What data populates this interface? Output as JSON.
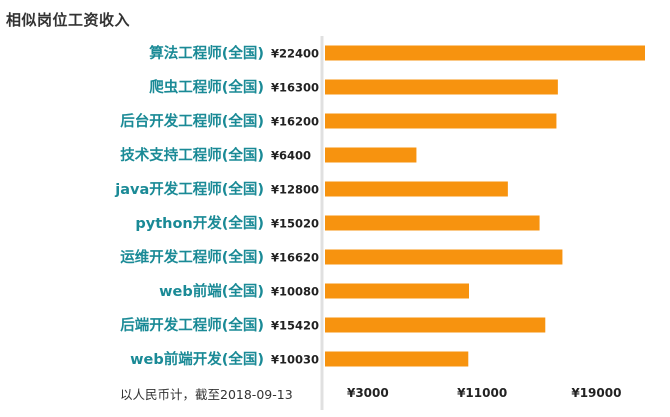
{
  "title": "相似岗位工资收入",
  "note": "以人民币计，截至2018-09-13",
  "colors": {
    "bar": "#f7930f",
    "category_label": "#1a8a96",
    "axis_line": "#e0e0e0"
  },
  "chart_data": {
    "type": "bar",
    "orientation": "horizontal",
    "categories": [
      "算法工程师(全国)",
      "爬虫工程师(全国)",
      "后台开发工程师(全国)",
      "技术支持工程师(全国)",
      "java开发工程师(全国)",
      "python开发(全国)",
      "运维开发工程师(全国)",
      "web前端(全国)",
      "后端开发工程师(全国)",
      "web前端开发(全国)"
    ],
    "values": [
      22400,
      16300,
      16200,
      6400,
      12800,
      15020,
      16620,
      10080,
      15420,
      10030
    ],
    "value_labels": [
      "¥22400",
      "¥16300",
      "¥16200",
      "¥6400",
      "¥12800",
      "¥15020",
      "¥16620",
      "¥10080",
      "¥15420",
      "¥10030"
    ],
    "x_ticks": [
      3000,
      11000,
      19000
    ],
    "x_tick_labels": [
      "¥3000",
      "¥11000",
      "¥19000"
    ],
    "xlim": [
      0,
      22400
    ],
    "grid": false,
    "legend": "none"
  }
}
